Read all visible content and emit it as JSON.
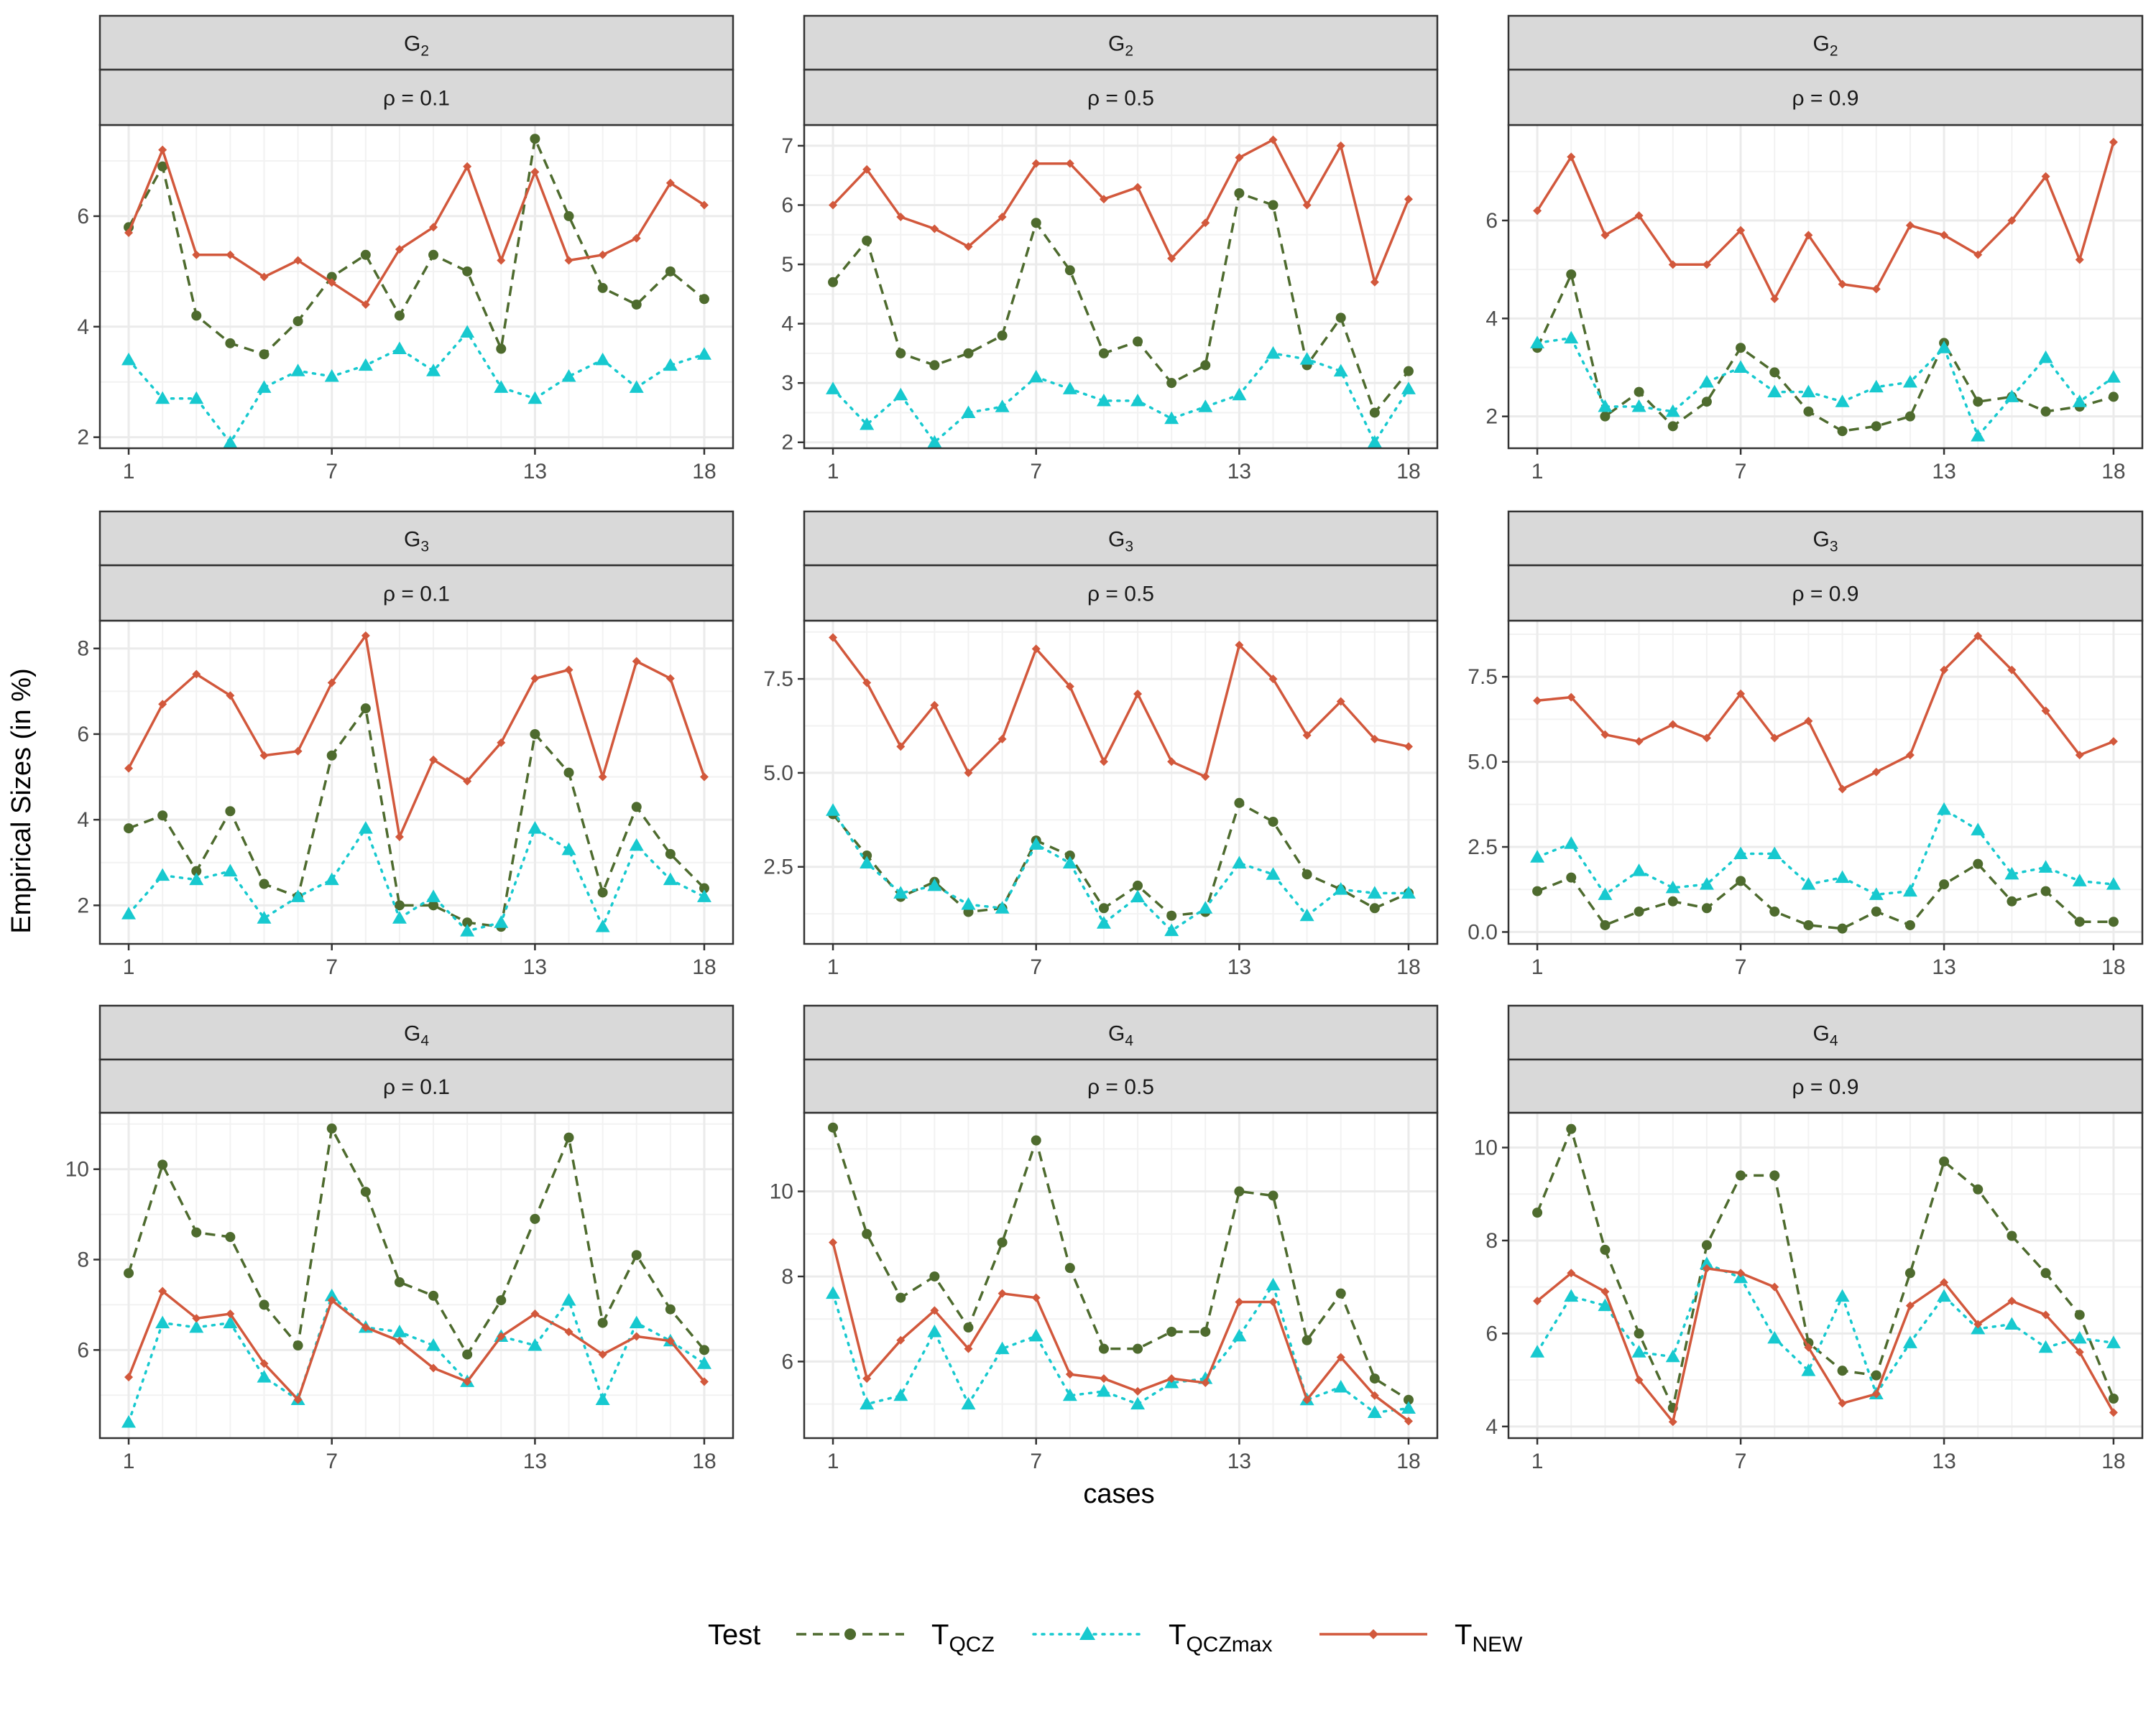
{
  "chart_data": {
    "type": "line",
    "xlabel": "cases",
    "ylabel": "Empirical Sizes (in %)",
    "x_ticks": [
      "1",
      "7",
      "13",
      "18"
    ],
    "legend": {
      "title": "Test",
      "entries": [
        {
          "name": "T",
          "sub": "QCZ",
          "color": "#4e6b2e",
          "dash": "dashed",
          "marker": "circle"
        },
        {
          "name": "T",
          "sub": "QCZmax",
          "color": "#17c9cf",
          "dash": "dotted",
          "marker": "triangle"
        },
        {
          "name": "T",
          "sub": "NEW",
          "color": "#d2583c",
          "dash": "solid",
          "marker": "diamond"
        }
      ]
    },
    "panels": [
      {
        "group": "G",
        "group_sub": "2",
        "rho": "ρ = 0.1",
        "ylim": [
          1.8,
          7.65
        ],
        "yticks": [
          "2",
          "4",
          "6"
        ],
        "ytick_values": [
          2,
          4,
          6
        ],
        "series": [
          [
            5.8,
            6.9,
            4.2,
            3.7,
            3.5,
            4.1,
            4.9,
            5.3,
            4.2,
            5.3,
            5.0,
            3.6,
            7.4,
            6.0,
            4.7,
            4.4,
            5.0,
            4.5
          ],
          [
            3.4,
            2.7,
            2.7,
            1.9,
            2.9,
            3.2,
            3.1,
            3.3,
            3.6,
            3.2,
            3.9,
            2.9,
            2.7,
            3.1,
            3.4,
            2.9,
            3.3,
            3.5
          ],
          [
            5.7,
            7.2,
            5.3,
            5.3,
            4.9,
            5.2,
            4.8,
            4.4,
            5.4,
            5.8,
            6.9,
            5.2,
            6.8,
            5.2,
            5.3,
            5.6,
            6.6,
            6.2
          ]
        ]
      },
      {
        "group": "G",
        "group_sub": "2",
        "rho": "ρ = 0.5",
        "ylim": [
          1.9,
          7.35
        ],
        "yticks": [
          "2",
          "3",
          "4",
          "5",
          "6",
          "7"
        ],
        "ytick_values": [
          2,
          3,
          4,
          5,
          6,
          7
        ],
        "series": [
          [
            4.7,
            5.4,
            3.5,
            3.3,
            3.5,
            3.8,
            5.7,
            4.9,
            3.5,
            3.7,
            3.0,
            3.3,
            6.2,
            6.0,
            3.3,
            4.1,
            2.5,
            3.2
          ],
          [
            2.9,
            2.3,
            2.8,
            2.0,
            2.5,
            2.6,
            3.1,
            2.9,
            2.7,
            2.7,
            2.4,
            2.6,
            2.8,
            3.5,
            3.4,
            3.2,
            2.0,
            2.9
          ],
          [
            6.0,
            6.6,
            5.8,
            5.6,
            5.3,
            5.8,
            6.7,
            6.7,
            6.1,
            6.3,
            5.1,
            5.7,
            6.8,
            7.1,
            6.0,
            7.0,
            4.7,
            6.1
          ]
        ]
      },
      {
        "group": "G",
        "group_sub": "2",
        "rho": "ρ = 0.9",
        "ylim": [
          1.35,
          7.95
        ],
        "yticks": [
          "2",
          "4",
          "6"
        ],
        "ytick_values": [
          2,
          4,
          6
        ],
        "series": [
          [
            3.4,
            4.9,
            2.0,
            2.5,
            1.8,
            2.3,
            3.4,
            2.9,
            2.1,
            1.7,
            1.8,
            2.0,
            3.5,
            2.3,
            2.4,
            2.1,
            2.2,
            2.4
          ],
          [
            3.5,
            3.6,
            2.2,
            2.2,
            2.1,
            2.7,
            3.0,
            2.5,
            2.5,
            2.3,
            2.6,
            2.7,
            3.4,
            1.6,
            2.4,
            3.2,
            2.3,
            2.8
          ],
          [
            6.2,
            7.3,
            5.7,
            6.1,
            5.1,
            5.1,
            5.8,
            4.4,
            5.7,
            4.7,
            4.6,
            5.9,
            5.7,
            5.3,
            6.0,
            6.9,
            5.2,
            7.6
          ]
        ]
      },
      {
        "group": "G",
        "group_sub": "3",
        "rho": "ρ = 0.1",
        "ylim": [
          1.1,
          8.65
        ],
        "yticks": [
          "2",
          "4",
          "6",
          "8"
        ],
        "ytick_values": [
          2,
          4,
          6,
          8
        ],
        "series": [
          [
            3.8,
            4.1,
            2.8,
            4.2,
            2.5,
            2.2,
            5.5,
            6.6,
            2.0,
            2.0,
            1.6,
            1.5,
            6.0,
            5.1,
            2.3,
            4.3,
            3.2,
            2.4
          ],
          [
            1.8,
            2.7,
            2.6,
            2.8,
            1.7,
            2.2,
            2.6,
            3.8,
            1.7,
            2.2,
            1.4,
            1.6,
            3.8,
            3.3,
            1.5,
            3.4,
            2.6,
            2.2
          ],
          [
            5.2,
            6.7,
            7.4,
            6.9,
            5.5,
            5.6,
            7.2,
            8.3,
            3.6,
            5.4,
            4.9,
            5.8,
            7.3,
            7.5,
            5.0,
            7.7,
            7.3,
            5.0
          ]
        ]
      },
      {
        "group": "G",
        "group_sub": "3",
        "rho": "ρ = 0.5",
        "ylim": [
          0.45,
          9.05
        ],
        "yticks": [
          "2.5",
          "5.0",
          "7.5"
        ],
        "ytick_values": [
          2.5,
          5.0,
          7.5
        ],
        "series": [
          [
            3.9,
            2.8,
            1.7,
            2.1,
            1.3,
            1.4,
            3.2,
            2.8,
            1.4,
            2.0,
            1.2,
            1.3,
            4.2,
            3.7,
            2.3,
            1.9,
            1.4,
            1.8
          ],
          [
            4.0,
            2.6,
            1.8,
            2.0,
            1.5,
            1.4,
            3.1,
            2.6,
            1.0,
            1.7,
            0.8,
            1.4,
            2.6,
            2.3,
            1.2,
            1.9,
            1.8,
            1.8
          ],
          [
            8.6,
            7.4,
            5.7,
            6.8,
            5.0,
            5.9,
            8.3,
            7.3,
            5.3,
            7.1,
            5.3,
            4.9,
            8.4,
            7.5,
            6.0,
            6.9,
            5.9,
            5.7
          ]
        ]
      },
      {
        "group": "G",
        "group_sub": "3",
        "rho": "ρ = 0.9",
        "ylim": [
          -0.35,
          9.15
        ],
        "yticks": [
          "0.0",
          "2.5",
          "5.0",
          "7.5"
        ],
        "ytick_values": [
          0,
          2.5,
          5.0,
          7.5
        ],
        "series": [
          [
            1.2,
            1.6,
            0.2,
            0.6,
            0.9,
            0.7,
            1.5,
            0.6,
            0.2,
            0.1,
            0.6,
            0.2,
            1.4,
            2.0,
            0.9,
            1.2,
            0.3,
            0.3
          ],
          [
            2.2,
            2.6,
            1.1,
            1.8,
            1.3,
            1.4,
            2.3,
            2.3,
            1.4,
            1.6,
            1.1,
            1.2,
            3.6,
            3.0,
            1.7,
            1.9,
            1.5,
            1.4
          ],
          [
            6.8,
            6.9,
            5.8,
            5.6,
            6.1,
            5.7,
            7.0,
            5.7,
            6.2,
            4.2,
            4.7,
            5.2,
            7.7,
            8.7,
            7.7,
            6.5,
            5.2,
            5.6
          ]
        ]
      },
      {
        "group": "G",
        "group_sub": "4",
        "rho": "ρ = 0.1",
        "ylim": [
          4.05,
          11.25
        ],
        "yticks": [
          "6",
          "8",
          "10"
        ],
        "ytick_values": [
          6,
          8,
          10
        ],
        "series": [
          [
            7.7,
            10.1,
            8.6,
            8.5,
            7.0,
            6.1,
            10.9,
            9.5,
            7.5,
            7.2,
            5.9,
            7.1,
            8.9,
            10.7,
            6.6,
            8.1,
            6.9,
            6.0
          ],
          [
            4.4,
            6.6,
            6.5,
            6.6,
            5.4,
            4.9,
            7.2,
            6.5,
            6.4,
            6.1,
            5.3,
            6.3,
            6.1,
            7.1,
            4.9,
            6.6,
            6.2,
            5.7
          ],
          [
            5.4,
            7.3,
            6.7,
            6.8,
            5.7,
            4.9,
            7.1,
            6.5,
            6.2,
            5.6,
            5.3,
            6.3,
            6.8,
            6.4,
            5.9,
            6.3,
            6.2,
            5.3
          ]
        ]
      },
      {
        "group": "G",
        "group_sub": "4",
        "rho": "ρ = 0.5",
        "ylim": [
          4.2,
          11.85
        ],
        "yticks": [
          "6",
          "8",
          "10"
        ],
        "ytick_values": [
          6,
          8,
          10
        ],
        "series": [
          [
            11.5,
            9.0,
            7.5,
            8.0,
            6.8,
            8.8,
            11.2,
            8.2,
            6.3,
            6.3,
            6.7,
            6.7,
            10.0,
            9.9,
            6.5,
            7.6,
            5.6,
            5.1
          ],
          [
            7.6,
            5.0,
            5.2,
            6.7,
            5.0,
            6.3,
            6.6,
            5.2,
            5.3,
            5.0,
            5.5,
            5.6,
            6.6,
            7.8,
            5.1,
            5.4,
            4.8,
            4.9
          ],
          [
            8.8,
            5.6,
            6.5,
            7.2,
            6.3,
            7.6,
            7.5,
            5.7,
            5.6,
            5.3,
            5.6,
            5.5,
            7.4,
            7.4,
            5.1,
            6.1,
            5.2,
            4.6
          ]
        ]
      },
      {
        "group": "G",
        "group_sub": "4",
        "rho": "ρ = 0.9",
        "ylim": [
          3.75,
          10.75
        ],
        "yticks": [
          "4",
          "6",
          "8",
          "10"
        ],
        "ytick_values": [
          4,
          6,
          8,
          10
        ],
        "series": [
          [
            8.6,
            10.4,
            7.8,
            6.0,
            4.4,
            7.9,
            9.4,
            9.4,
            5.8,
            5.2,
            5.1,
            7.3,
            9.7,
            9.1,
            8.1,
            7.3,
            6.4,
            4.6
          ],
          [
            5.6,
            6.8,
            6.6,
            5.6,
            5.5,
            7.5,
            7.2,
            5.9,
            5.2,
            6.8,
            4.7,
            5.8,
            6.8,
            6.1,
            6.2,
            5.7,
            5.9,
            5.8
          ],
          [
            6.7,
            7.3,
            6.9,
            5.0,
            4.1,
            7.4,
            7.3,
            7.0,
            5.7,
            4.5,
            4.7,
            6.6,
            7.1,
            6.2,
            6.7,
            6.4,
            5.6,
            4.3
          ]
        ]
      }
    ]
  }
}
